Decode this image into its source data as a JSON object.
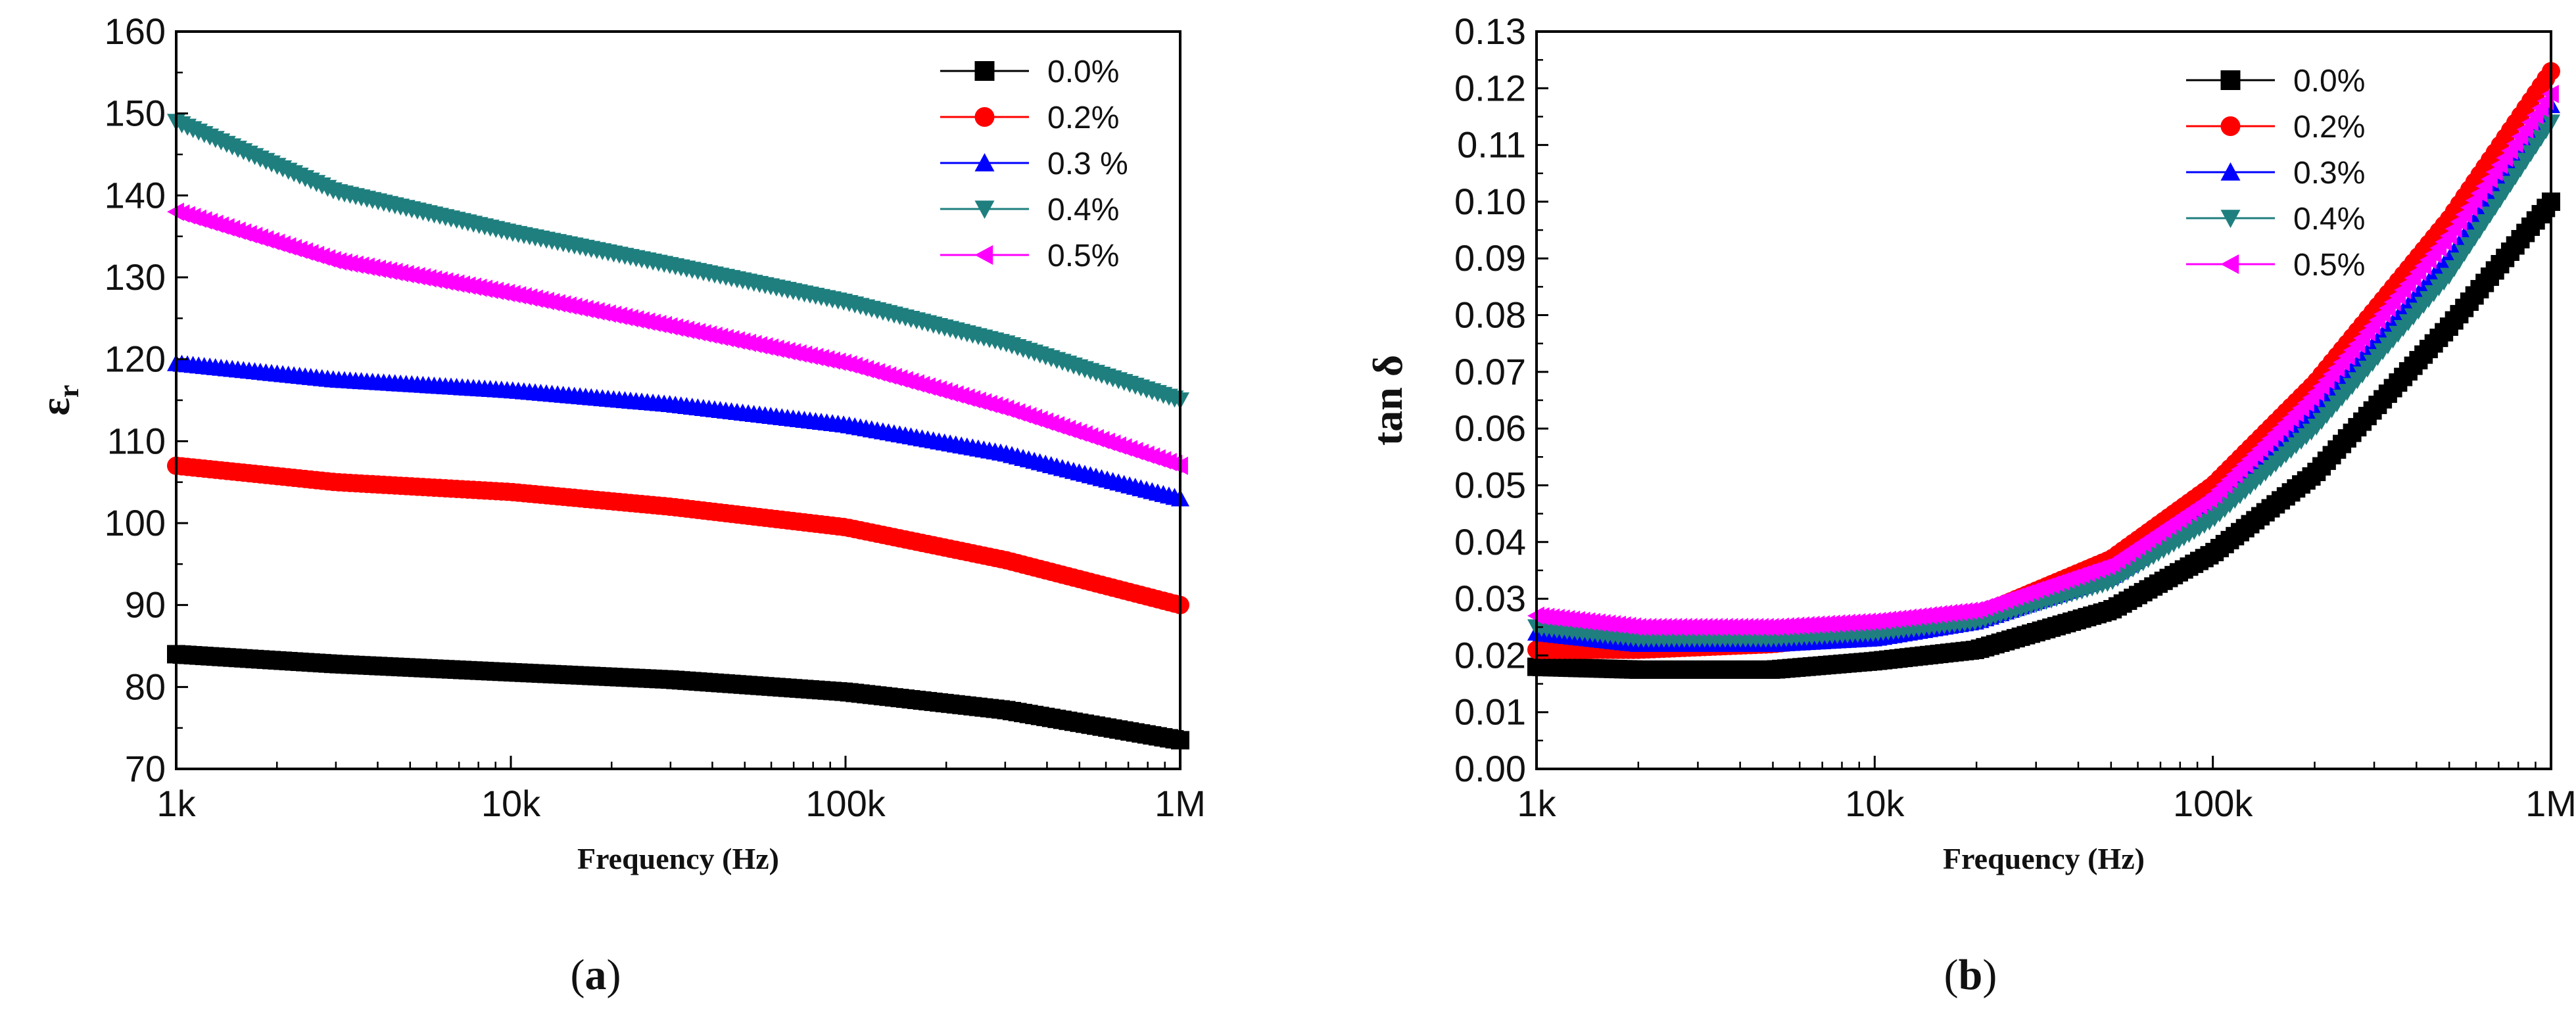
{
  "chart_data": [
    {
      "type": "line",
      "panel": "a",
      "caption_letter": "a",
      "xscale": "log",
      "xlim": [
        1000,
        1000000
      ],
      "x_ticks": [
        1000,
        10000,
        100000,
        1000000
      ],
      "x_tick_labels": [
        "1k",
        "10k",
        "100k",
        "1M"
      ],
      "xlabel": "Frequency (Hz)",
      "ylabel": "ε",
      "ylabel_sub": "r",
      "ylim": [
        70,
        160
      ],
      "y_ticks": [
        70,
        80,
        90,
        100,
        110,
        120,
        130,
        140,
        150,
        160
      ],
      "y_tick_labels": [
        "70",
        "80",
        "90",
        "100",
        "110",
        "120",
        "130",
        "140",
        "150",
        "160"
      ],
      "legend_position": "top-right",
      "x": [
        1000,
        3000,
        10000,
        30000,
        100000,
        300000,
        1000000
      ],
      "series": [
        {
          "name": "0.0%",
          "marker": "square",
          "color": "#000000",
          "values": [
            84,
            82.8,
            81.8,
            80.9,
            79.4,
            77.2,
            73.5
          ]
        },
        {
          "name": "0.2%",
          "marker": "circle",
          "color": "#ff0000",
          "values": [
            107,
            105,
            103.8,
            102,
            99.5,
            95.5,
            90
          ]
        },
        {
          "name": "0.3 %",
          "marker": "triangle-up",
          "color": "#0000ff",
          "values": [
            119.5,
            117.5,
            116.2,
            114.5,
            112,
            108.5,
            103
          ]
        },
        {
          "name": "0.4%",
          "marker": "triangle-down",
          "color": "#1f7f7f",
          "values": [
            149,
            140.5,
            135.5,
            131.5,
            127,
            122,
            115
          ]
        },
        {
          "name": "0.5%",
          "marker": "triangle-left",
          "color": "#ff00ff",
          "values": [
            138,
            132,
            128,
            124,
            119.5,
            114,
            107
          ]
        }
      ]
    },
    {
      "type": "line",
      "panel": "b",
      "caption_letter": "b",
      "xscale": "log",
      "xlim": [
        1000,
        1000000
      ],
      "x_ticks": [
        1000,
        10000,
        100000,
        1000000
      ],
      "x_tick_labels": [
        "1k",
        "10k",
        "100k",
        "1M"
      ],
      "xlabel": "Frequency (Hz)",
      "ylabel": "tan δ",
      "ylim": [
        0,
        0.13
      ],
      "y_ticks": [
        0,
        0.01,
        0.02,
        0.03,
        0.04,
        0.05,
        0.06,
        0.07,
        0.08,
        0.09,
        0.1,
        0.11,
        0.12,
        0.13
      ],
      "y_tick_labels": [
        "0.00",
        "0.01",
        "0.02",
        "0.03",
        "0.04",
        "0.05",
        "0.06",
        "0.07",
        "0.08",
        "0.09",
        "0.10",
        "0.11",
        "0.12",
        "0.13"
      ],
      "legend_position": "top-right",
      "x": [
        1000,
        2000,
        5000,
        10000,
        20000,
        50000,
        100000,
        200000,
        500000,
        1000000
      ],
      "series": [
        {
          "name": "0.0%",
          "marker": "square",
          "color": "#000000",
          "values": [
            0.018,
            0.0175,
            0.0175,
            0.019,
            0.021,
            0.028,
            0.038,
            0.052,
            0.078,
            0.1
          ]
        },
        {
          "name": "0.2%",
          "marker": "circle",
          "color": "#ff0000",
          "values": [
            0.021,
            0.021,
            0.022,
            0.024,
            0.027,
            0.037,
            0.05,
            0.068,
            0.097,
            0.123
          ]
        },
        {
          "name": "0.3%",
          "marker": "triangle-up",
          "color": "#0000ff",
          "values": [
            0.024,
            0.022,
            0.022,
            0.023,
            0.026,
            0.034,
            0.046,
            0.063,
            0.09,
            0.117
          ]
        },
        {
          "name": "0.4%",
          "marker": "triangle-down",
          "color": "#1f7f7f",
          "values": [
            0.025,
            0.023,
            0.023,
            0.024,
            0.026,
            0.033,
            0.044,
            0.06,
            0.087,
            0.114
          ]
        },
        {
          "name": "0.5%",
          "marker": "triangle-left",
          "color": "#ff00ff",
          "values": [
            0.027,
            0.025,
            0.025,
            0.026,
            0.028,
            0.036,
            0.048,
            0.066,
            0.094,
            0.119
          ]
        }
      ]
    }
  ]
}
